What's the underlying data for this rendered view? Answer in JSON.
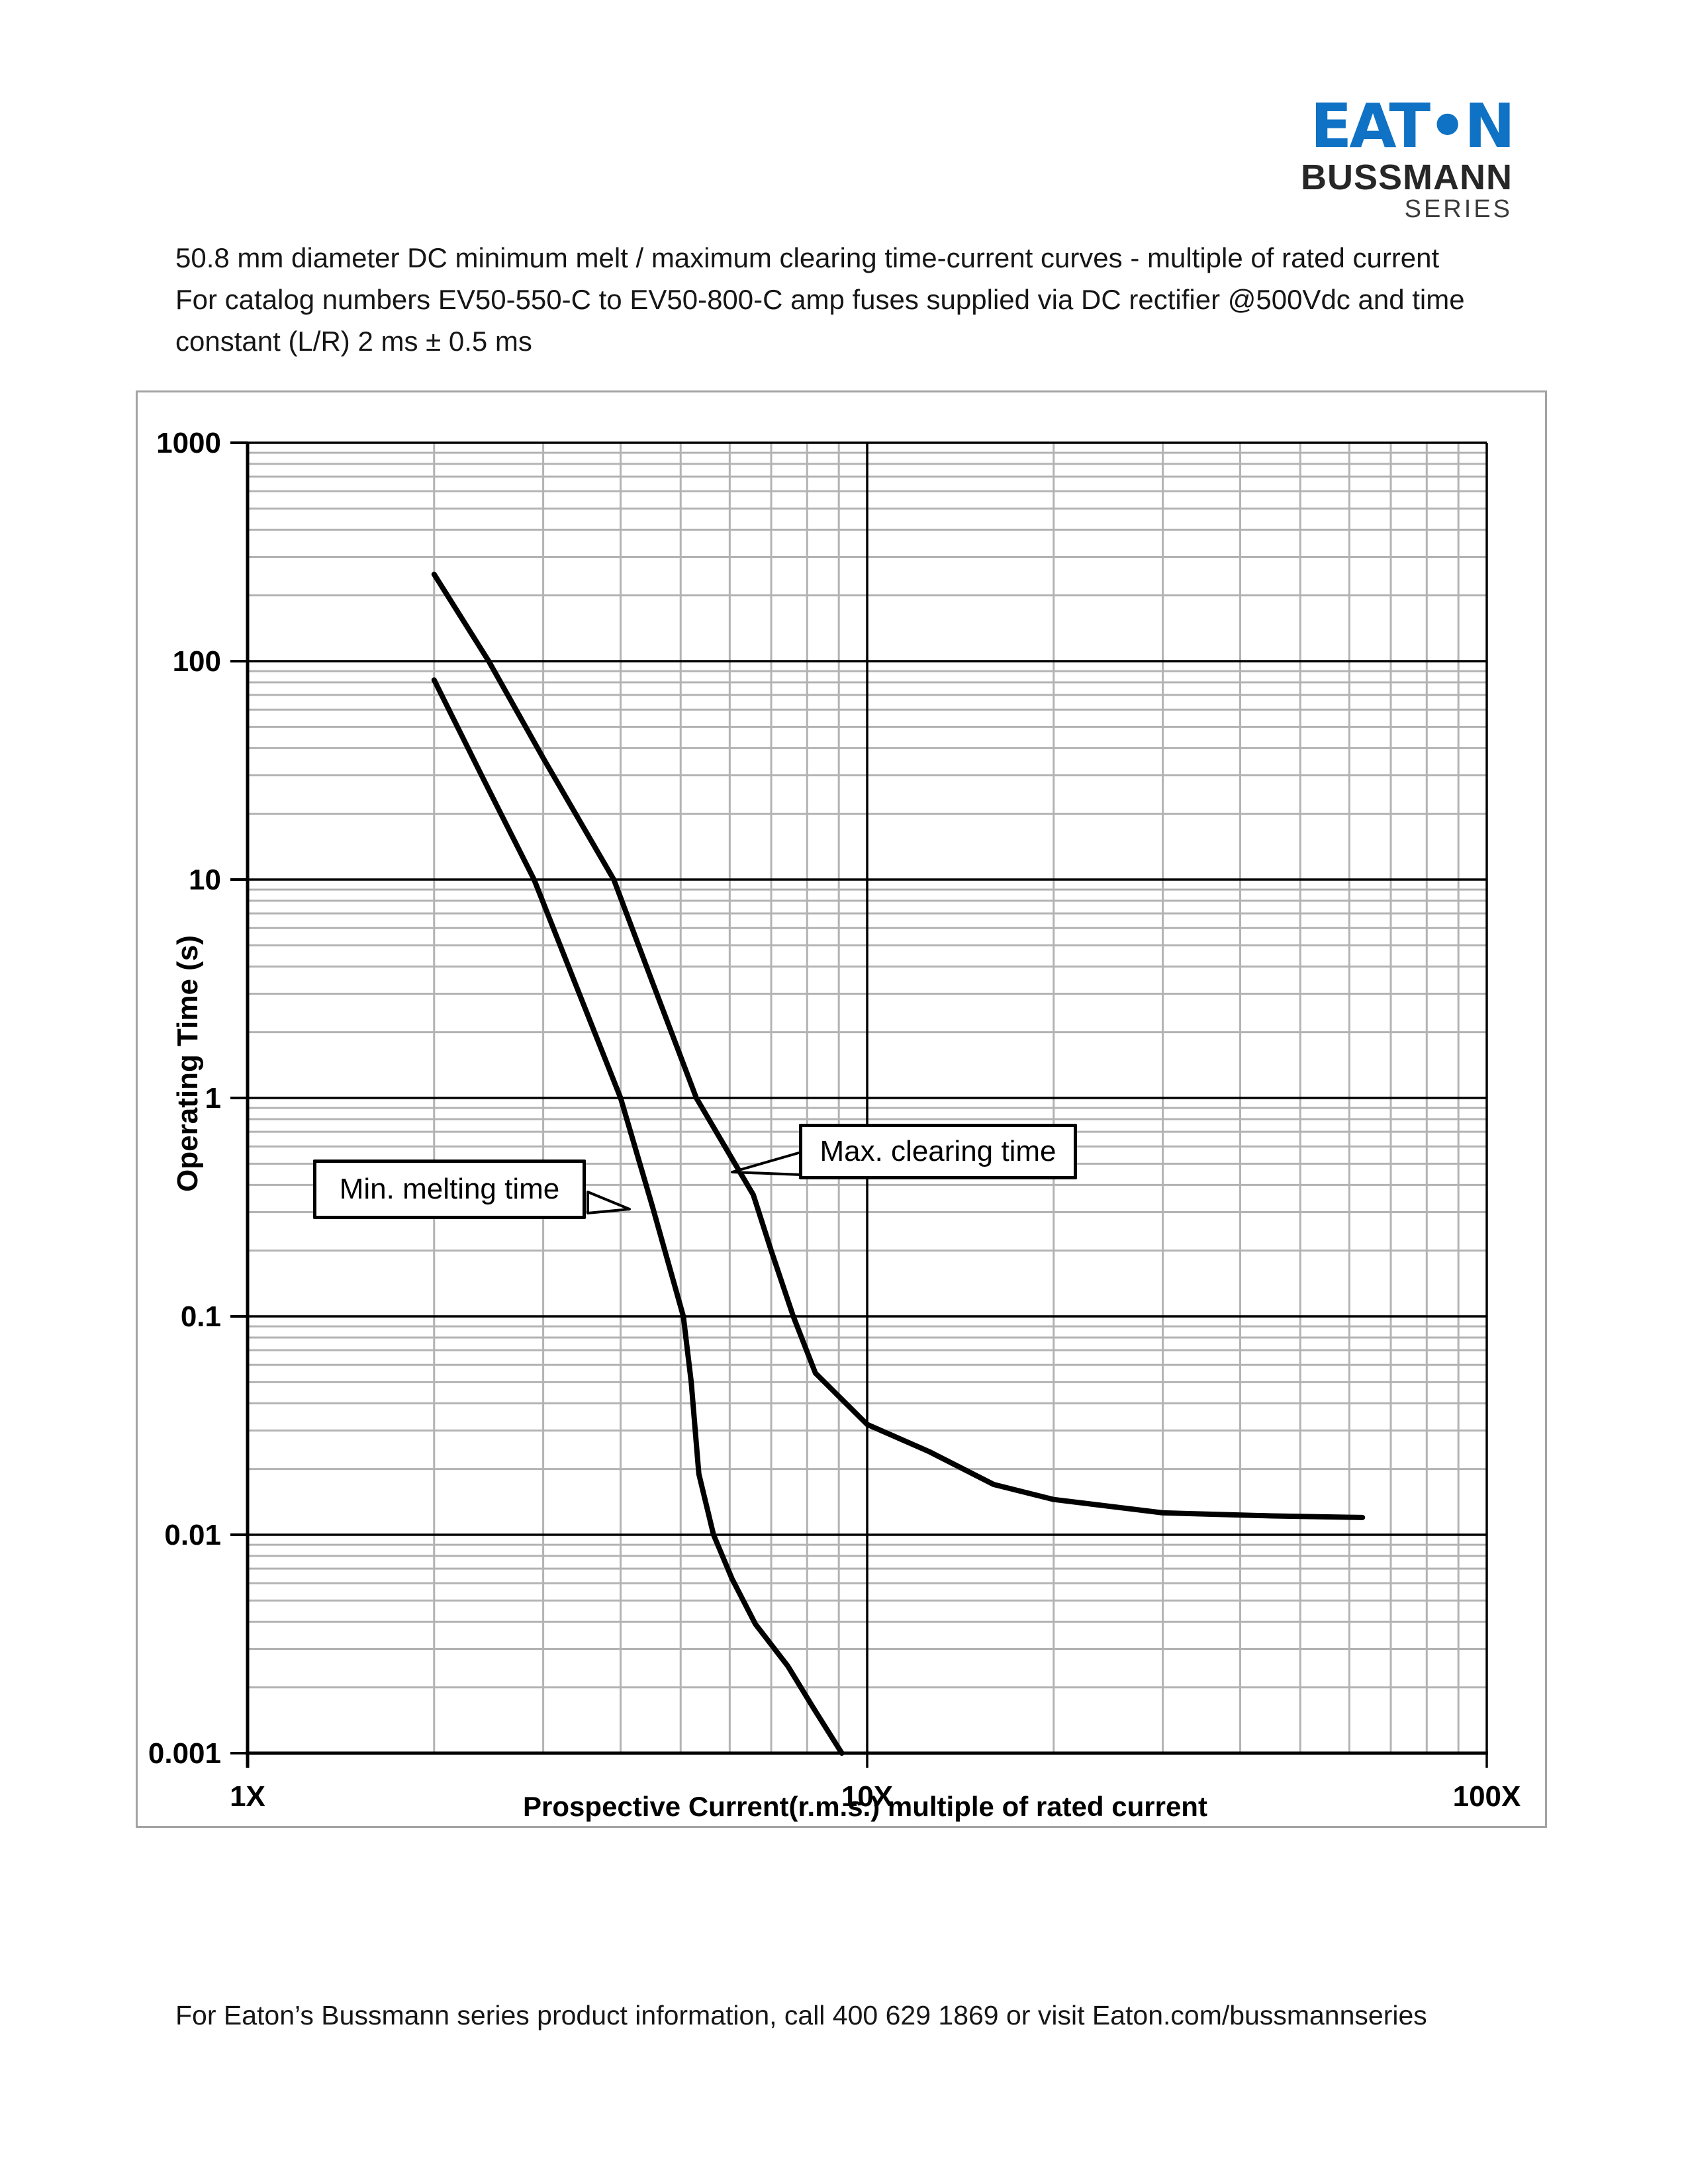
{
  "logo": {
    "brand_left": "EAT",
    "brand_dot": "•",
    "brand_right": "N",
    "line2": "BUSSMANN",
    "line3": "SERIES",
    "brand_color": "#0f72c4",
    "dark_color": "#272727"
  },
  "title": {
    "line1": "50.8 mm diameter DC minimum melt / maximum clearing time-current curves - multiple of rated current",
    "line2": "For catalog numbers EV50-550-C to EV50-800-C amp fuses supplied via DC rectifier @500Vdc and time",
    "line3": "constant (L/R) 2 ms ± 0.5 ms"
  },
  "chart_data": {
    "type": "line",
    "x_scale": "log",
    "y_scale": "log",
    "xlim": [
      1,
      100
    ],
    "ylim": [
      0.001,
      1000
    ],
    "xlabel": "Prospective Current(r.m.s.) multiple of rated current",
    "ylabel": "Operating Time (s)",
    "grid": {
      "major_color": "#000000",
      "minor_color": "#b3b3b3",
      "minor_on": true
    },
    "x_ticks": [
      {
        "value": 1,
        "label": "1X"
      },
      {
        "value": 10,
        "label": "10X"
      },
      {
        "value": 100,
        "label": "100X"
      }
    ],
    "y_ticks": [
      {
        "value": 1000,
        "label": "1000"
      },
      {
        "value": 100,
        "label": "100"
      },
      {
        "value": 10,
        "label": "10"
      },
      {
        "value": 1,
        "label": "1"
      },
      {
        "value": 0.1,
        "label": "0.1"
      },
      {
        "value": 0.01,
        "label": "0.01"
      },
      {
        "value": 0.001,
        "label": "0.001"
      }
    ],
    "series": [
      {
        "name": "Min. melting time",
        "color": "#000000",
        "points": [
          [
            2.0,
            82
          ],
          [
            2.4,
            29
          ],
          [
            2.9,
            10
          ],
          [
            3.4,
            3.2
          ],
          [
            4.0,
            1.0
          ],
          [
            4.5,
            0.32
          ],
          [
            5.05,
            0.1
          ],
          [
            5.2,
            0.05
          ],
          [
            5.35,
            0.019
          ],
          [
            5.65,
            0.01
          ],
          [
            6.05,
            0.0063
          ],
          [
            6.6,
            0.0039
          ],
          [
            7.45,
            0.0025
          ],
          [
            8.2,
            0.0016
          ],
          [
            9.1,
            0.001
          ]
        ]
      },
      {
        "name": "Max. clearing time",
        "color": "#000000",
        "points": [
          [
            2.0,
            250
          ],
          [
            2.45,
            100
          ],
          [
            3.0,
            36
          ],
          [
            3.9,
            10
          ],
          [
            4.5,
            3.4
          ],
          [
            5.3,
            1.0
          ],
          [
            6.0,
            0.55
          ],
          [
            6.55,
            0.36
          ],
          [
            7.0,
            0.2
          ],
          [
            7.6,
            0.1
          ],
          [
            8.25,
            0.055
          ],
          [
            10,
            0.032
          ],
          [
            12.6,
            0.024
          ],
          [
            16,
            0.017
          ],
          [
            20,
            0.0145
          ],
          [
            30,
            0.0126
          ],
          [
            45,
            0.0122
          ],
          [
            63,
            0.012
          ]
        ]
      }
    ],
    "annotations": [
      {
        "text": "Min. melting time",
        "points_to_series": "Min. melting time"
      },
      {
        "text": "Max. clearing time",
        "points_to_series": "Max. clearing time"
      }
    ],
    "legend_position": "callouts-on-plot"
  },
  "footer": {
    "text": "For Eaton’s Bussmann series product information, call 400 629 1869 or visit Eaton.com/bussmannseries"
  }
}
